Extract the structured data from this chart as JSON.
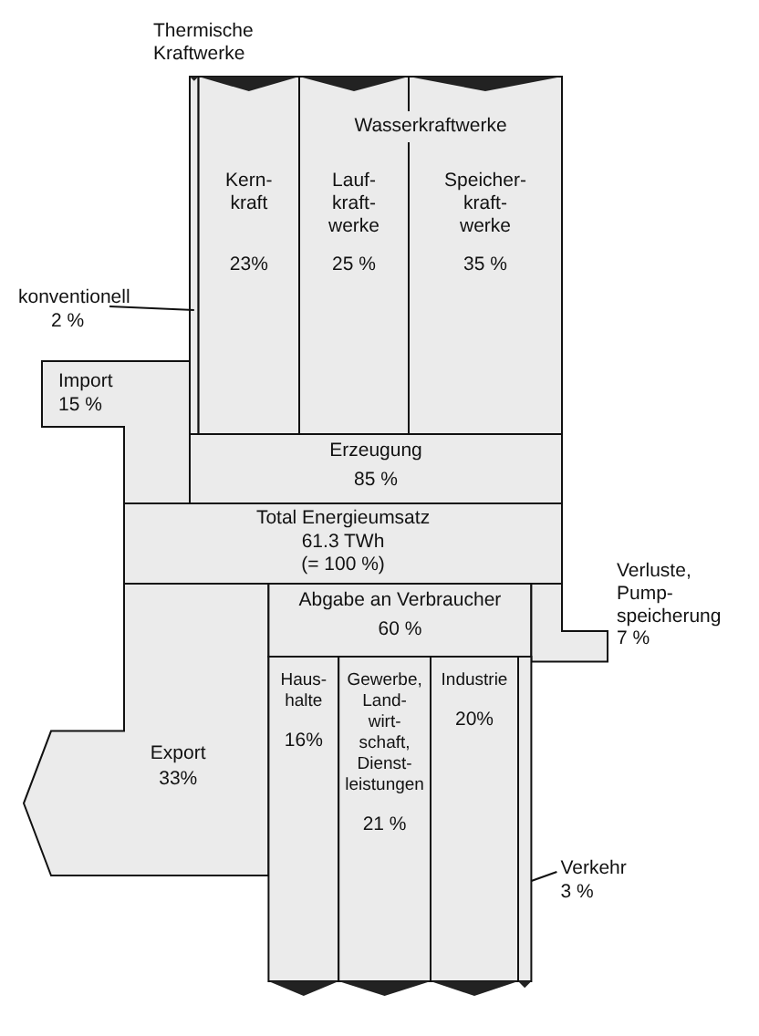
{
  "chart_data": {
    "type": "other",
    "annotations": [
      "Thermische\nKraftwerke",
      "Wasserkraftwerke"
    ],
    "categories": [
      "konventionell",
      "Kern-\nkraft",
      "Lauf-\nkraft-\nwerke",
      "Speicher-\nkraft-\nwerke",
      "Import",
      "Erzeugung",
      "Total Energieumsatz",
      "Abgabe an Verbraucher",
      "Verluste,\nPump-\nspeicherung",
      "Export",
      "Haus-\nhalte",
      "Gewerbe,\nLand-\nwirt-\nschaft,\nDienst-\nleistungen",
      "Industrie",
      "Verkehr"
    ],
    "values": [
      2,
      23,
      25,
      35,
      15,
      85,
      100,
      60,
      7,
      33,
      16,
      21,
      20,
      3
    ],
    "value_labels": [
      "2 %",
      "23%",
      "25 %",
      "35 %",
      "15 %",
      "85 %",
      "61.3 TWh\n(= 100 %)",
      "60 %",
      "7 %",
      "33%",
      "16%",
      "21 %",
      "20%",
      "3 %"
    ],
    "color": "#ebebeb"
  }
}
